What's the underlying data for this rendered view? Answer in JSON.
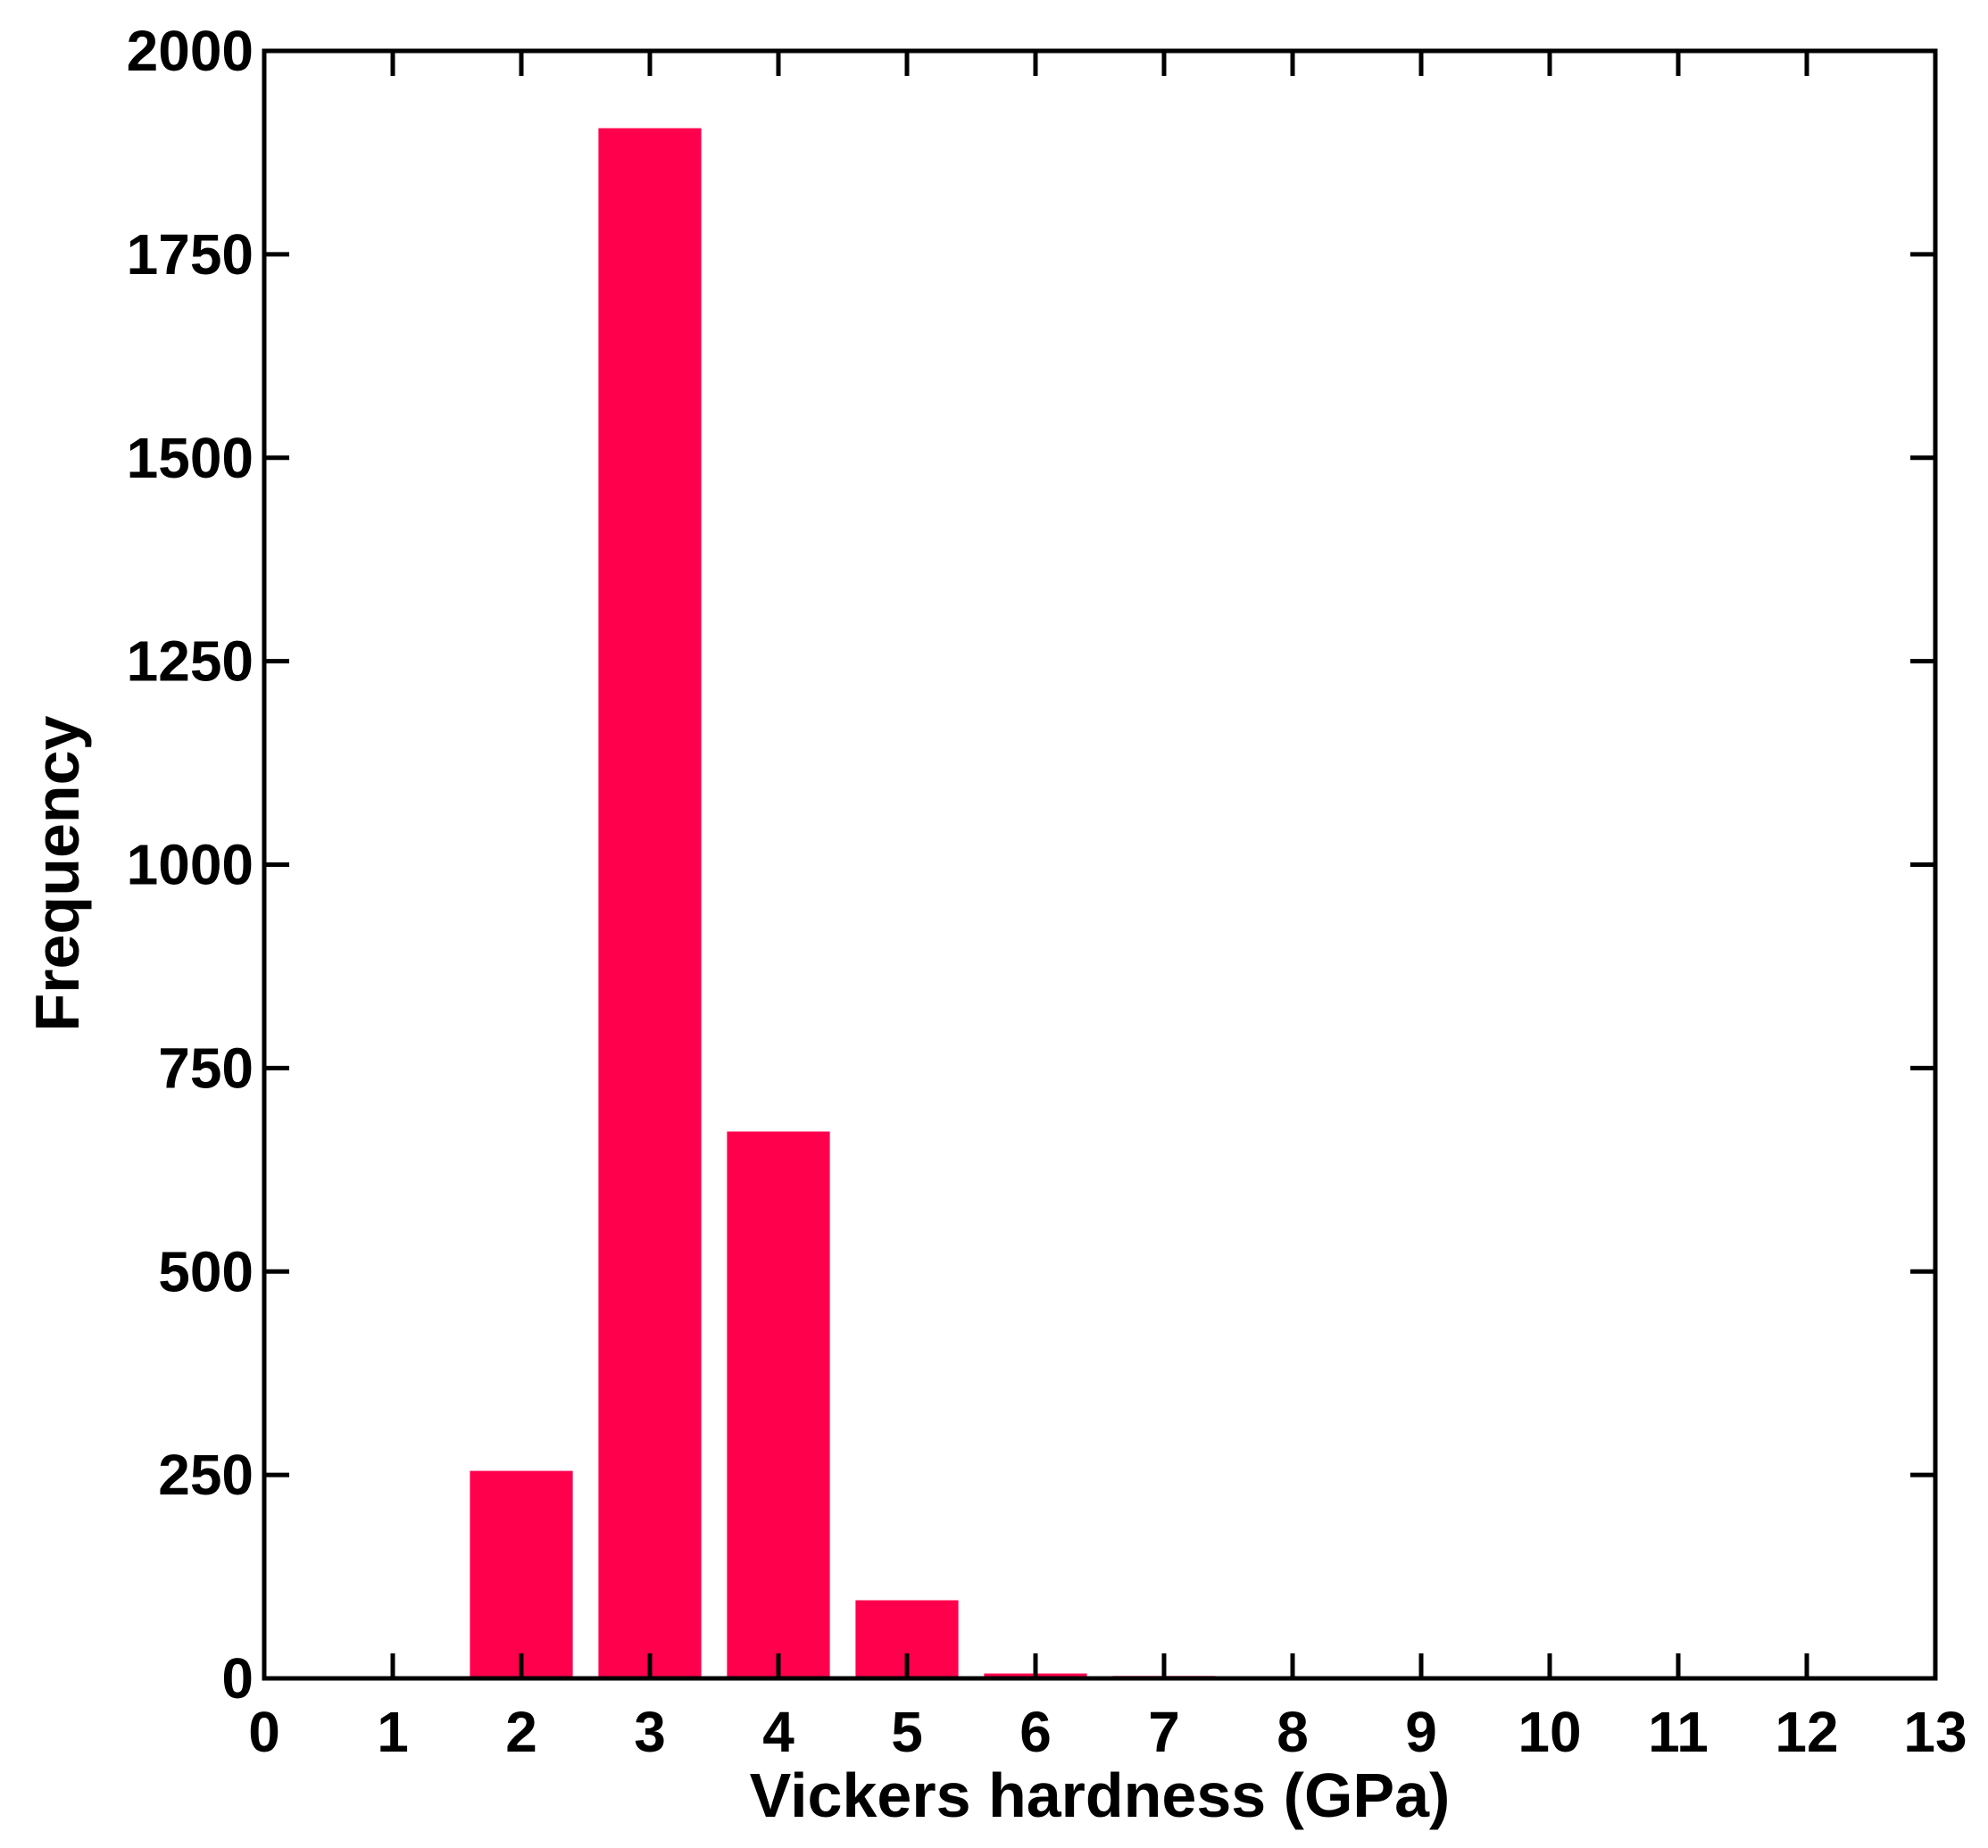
{
  "colors": {
    "bar": "#ff004d",
    "axis": "#000000",
    "background": "#ffffff"
  },
  "chart_data": {
    "type": "bar",
    "title": "",
    "xlabel": "Vickers hardness (GPa)",
    "ylabel": "Frequency",
    "xlim": [
      0,
      13
    ],
    "ylim": [
      0,
      2000
    ],
    "xticks": [
      0,
      1,
      2,
      3,
      4,
      5,
      6,
      7,
      8,
      9,
      10,
      11,
      12,
      13
    ],
    "yticks": [
      0,
      250,
      500,
      750,
      1000,
      1250,
      1500,
      1750,
      2000
    ],
    "bar_width": 0.8,
    "x": [
      2,
      3,
      4,
      5,
      6,
      7
    ],
    "values": [
      255,
      1905,
      672,
      96,
      6,
      3
    ],
    "grid": false,
    "legend": "none"
  }
}
